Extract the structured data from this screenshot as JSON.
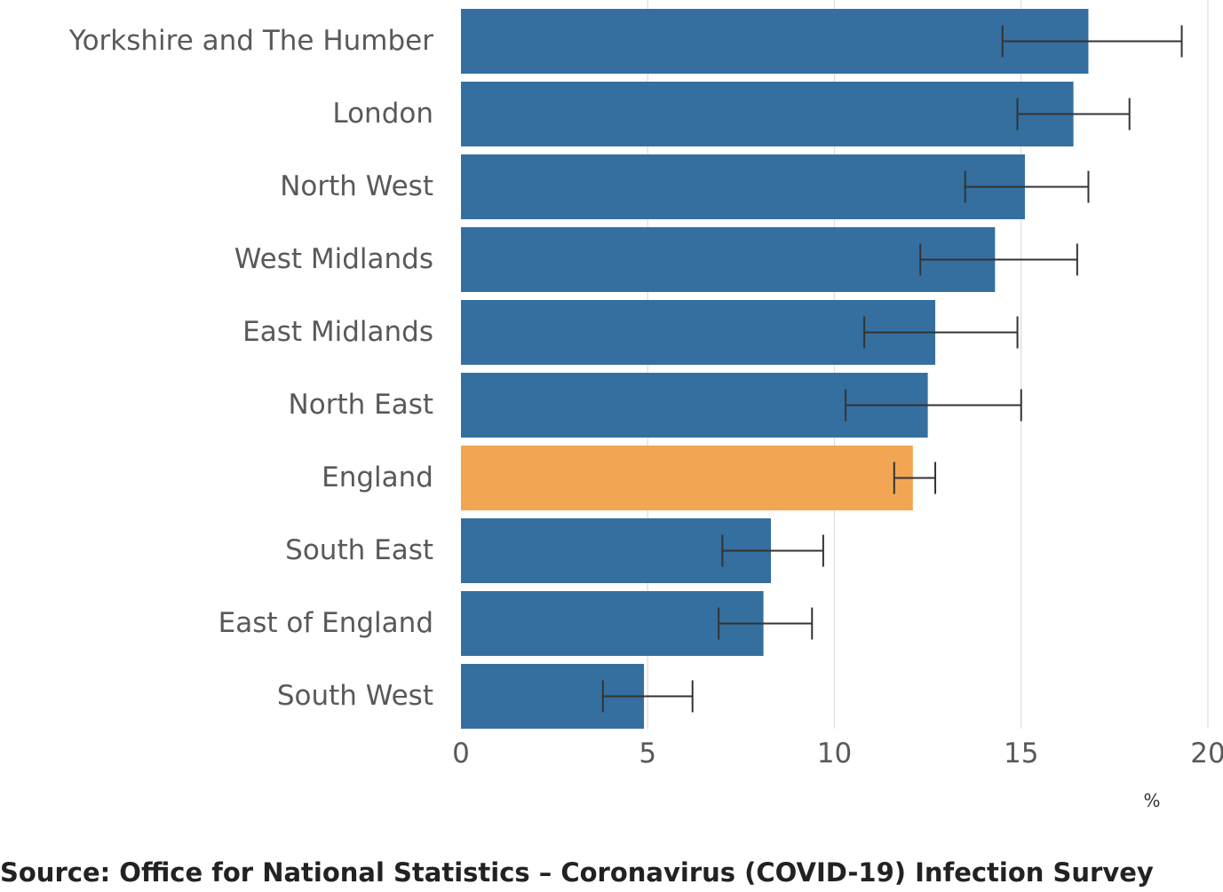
{
  "chart_data": {
    "type": "bar",
    "orientation": "horizontal",
    "categories": [
      "Yorkshire and The Humber",
      "London",
      "North West",
      "West Midlands",
      "East Midlands",
      "North East",
      "England",
      "South East",
      "East of England",
      "South West"
    ],
    "values": [
      16.8,
      16.4,
      15.1,
      14.3,
      12.7,
      12.5,
      12.1,
      8.3,
      8.1,
      4.9
    ],
    "error_low": [
      14.5,
      14.9,
      13.5,
      12.3,
      10.8,
      10.3,
      11.6,
      7.0,
      6.9,
      3.8
    ],
    "error_high": [
      19.3,
      17.9,
      16.8,
      16.5,
      14.9,
      15.0,
      12.7,
      9.7,
      9.4,
      6.2
    ],
    "highlight": "England",
    "colors": {
      "default": "#346F9F",
      "highlight": "#F2A654",
      "error_bar": "#333333",
      "grid": "#DDDDDD"
    },
    "xlim": [
      0,
      20
    ],
    "xticks": [
      "0",
      "5",
      "10",
      "15",
      "20"
    ],
    "unit_label": "%",
    "grid": true
  },
  "source": "Source: Office for National Statistics – Coronavirus (COVID-19) Infection Survey"
}
